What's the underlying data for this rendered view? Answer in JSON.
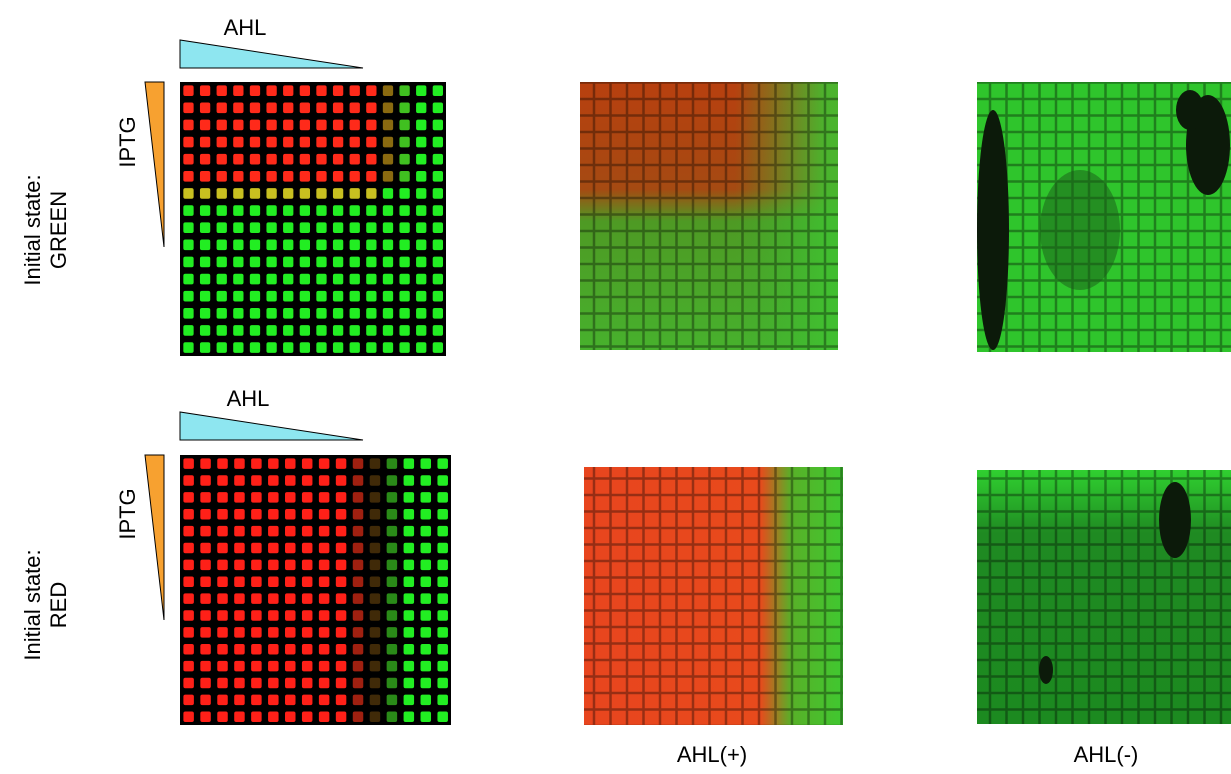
{
  "rows": [
    {
      "row_label": [
        "Initial state:",
        "GREEN"
      ],
      "x_gradient_label": "AHL",
      "y_gradient_label": "IPTG"
    },
    {
      "row_label": [
        "Initial state:",
        "RED"
      ],
      "x_gradient_label": "AHL",
      "y_gradient_label": "IPTG"
    }
  ],
  "columns": [
    "AHL(+)",
    "AHL(-)"
  ]
}
